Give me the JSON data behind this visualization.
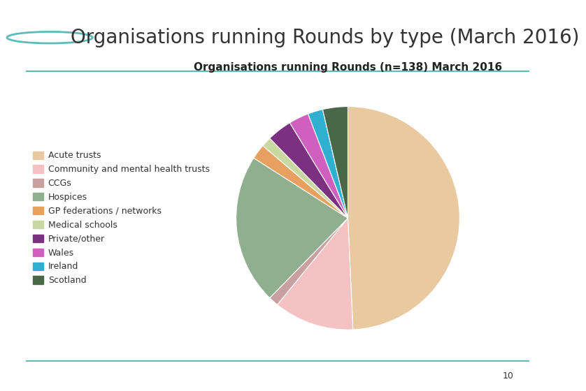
{
  "title_main": "Organisations running Rounds by type (March 2016)",
  "chart_title": "Organisations running Rounds (n=138) March 2016",
  "labels": [
    "Acute trusts",
    "Community and mental health trusts",
    "CCGs",
    "Hospices",
    "GP federations / networks",
    "Medical schools",
    "Private/other",
    "Wales",
    "Ireland",
    "Scotland"
  ],
  "values": [
    68,
    16,
    2,
    30,
    3,
    2,
    5,
    4,
    3,
    5
  ],
  "colors": [
    "#E8C9A0",
    "#F4C2C2",
    "#C8A0A0",
    "#8FAF8F",
    "#E8A060",
    "#C8D8A0",
    "#7B3080",
    "#D060C0",
    "#30B0D0",
    "#486848"
  ],
  "background_color": "#FFFFFF",
  "header_circle_color": "#5BBCB8",
  "line_color": "#5BBCB8",
  "title_fontsize": 20,
  "chart_title_fontsize": 11,
  "legend_fontsize": 9
}
